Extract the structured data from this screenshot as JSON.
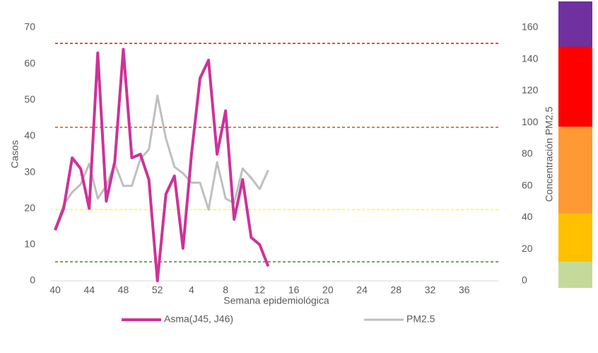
{
  "chart_data": {
    "type": "line",
    "x_label": "Semana epidemiológica",
    "y_label": "Casos",
    "y2_label": "Concentración PM2.5",
    "categories": [
      40,
      null,
      null,
      null,
      44,
      null,
      null,
      null,
      48,
      null,
      null,
      null,
      52,
      null,
      null,
      null,
      4,
      null,
      null,
      null,
      8,
      null,
      null,
      null,
      12,
      null,
      null,
      null,
      16,
      null,
      null,
      null,
      20,
      null,
      null,
      null,
      24,
      null,
      null,
      null,
      28,
      null,
      null,
      null,
      32,
      null,
      null,
      null,
      36,
      null,
      null,
      null
    ],
    "ylim": [
      0,
      70
    ],
    "yticks": [
      0,
      10,
      20,
      30,
      40,
      50,
      60,
      70
    ],
    "y2lim": [
      0,
      160
    ],
    "y2ticks": [
      0,
      20,
      40,
      60,
      80,
      100,
      120,
      140,
      160
    ],
    "legend": "bottom",
    "series": [
      {
        "name": "Asma(J45, J46)",
        "color": "#cc3399",
        "values": [
          14,
          20,
          34,
          31,
          20,
          63,
          22,
          33,
          64,
          34,
          35,
          28,
          0,
          24,
          29,
          9,
          35,
          56,
          61,
          35,
          47,
          17,
          28,
          12,
          10,
          4,
          null,
          null,
          null,
          null,
          null,
          null,
          null,
          null,
          null,
          null,
          null,
          null,
          null,
          null,
          null,
          null,
          null,
          null,
          null,
          null,
          null,
          null,
          null,
          null,
          null,
          null
        ]
      },
      {
        "name": "PM2.5",
        "color": "#bfbfbf",
        "axis": "y2",
        "values": [
          33,
          48,
          56,
          61,
          74,
          52,
          60,
          74,
          60,
          60,
          77,
          83,
          117,
          90,
          72,
          68,
          62,
          62,
          45,
          75,
          52,
          49,
          71,
          65,
          58,
          70,
          null,
          null,
          null,
          null,
          null,
          null,
          null,
          null,
          null,
          null,
          null,
          null,
          null,
          null,
          null,
          null,
          null,
          null,
          null,
          null,
          null,
          null,
          null,
          null,
          null,
          null
        ]
      }
    ],
    "reference_lines": [
      {
        "value": 150,
        "color": "#ff0000"
      },
      {
        "value": 97,
        "color": "#c55a11"
      },
      {
        "value": 45,
        "color": "#ffff00"
      },
      {
        "value": 12,
        "color": "#548235"
      }
    ]
  }
}
